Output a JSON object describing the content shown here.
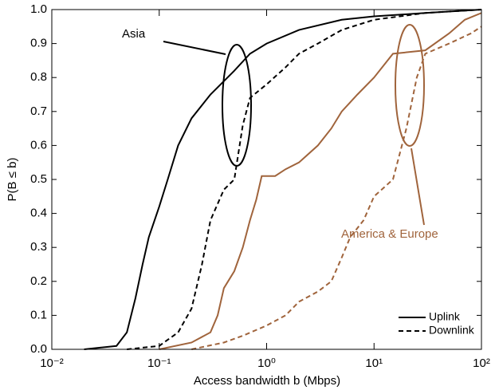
{
  "chart_data": {
    "type": "step-cdf",
    "xlabel": "Access bandwidth b (Mbps)",
    "ylabel": "P(B ≤ b)",
    "xscale": "log",
    "xlim": [
      0.01,
      100
    ],
    "xticks": [
      {
        "value": 0.01,
        "label": "10⁻²"
      },
      {
        "value": 0.1,
        "label": "10⁻¹"
      },
      {
        "value": 1,
        "label": "10⁰"
      },
      {
        "value": 10,
        "label": "10¹"
      },
      {
        "value": 100,
        "label": "10²"
      }
    ],
    "ylim": [
      0,
      1
    ],
    "yticks": [
      {
        "value": 0,
        "label": "0.0"
      },
      0.1,
      0.2,
      0.3,
      0.4,
      0.5,
      0.6,
      0.7,
      0.8,
      0.9,
      {
        "value": 1,
        "label": "1.0"
      }
    ],
    "annotations": [
      "Asia",
      "America & Europe"
    ],
    "legend_position": "lower right",
    "legend": [
      {
        "label": "Uplink",
        "dashed": false
      },
      {
        "label": "Downlink",
        "dashed": true
      }
    ],
    "series": [
      {
        "color": "#000000",
        "dashed": false,
        "x": [
          0.02,
          0.04,
          0.05,
          0.06,
          0.07,
          0.08,
          0.1,
          0.12,
          0.15,
          0.2,
          0.3,
          0.5,
          0.7,
          1,
          2,
          5,
          10,
          30,
          100
        ],
        "values": [
          0,
          0.01,
          0.05,
          0.15,
          0.25,
          0.33,
          0.42,
          0.5,
          0.6,
          0.68,
          0.75,
          0.82,
          0.87,
          0.9,
          0.94,
          0.97,
          0.98,
          0.99,
          1.0
        ]
      },
      {
        "color": "#000000",
        "dashed": true,
        "x": [
          0.05,
          0.1,
          0.15,
          0.2,
          0.25,
          0.3,
          0.4,
          0.5,
          0.6,
          0.7,
          1,
          1.5,
          2,
          3,
          5,
          10,
          30,
          100
        ],
        "values": [
          0,
          0.01,
          0.05,
          0.12,
          0.25,
          0.38,
          0.47,
          0.5,
          0.66,
          0.74,
          0.78,
          0.83,
          0.87,
          0.9,
          0.94,
          0.97,
          0.99,
          1.0
        ]
      },
      {
        "color": "#a0643c",
        "dashed": false,
        "x": [
          0.1,
          0.2,
          0.3,
          0.35,
          0.4,
          0.5,
          0.6,
          0.7,
          0.8,
          0.9,
          1.2,
          1.5,
          2,
          3,
          4,
          5,
          7,
          10,
          15,
          30,
          50,
          70,
          100
        ],
        "values": [
          0,
          0.02,
          0.05,
          0.1,
          0.18,
          0.23,
          0.3,
          0.38,
          0.44,
          0.51,
          0.51,
          0.53,
          0.55,
          0.6,
          0.65,
          0.7,
          0.75,
          0.8,
          0.87,
          0.88,
          0.93,
          0.97,
          0.99
        ]
      },
      {
        "color": "#a0643c",
        "dashed": true,
        "x": [
          0.2,
          0.4,
          0.6,
          1,
          1.5,
          2,
          3,
          4,
          5,
          6,
          8,
          10,
          15,
          20,
          25,
          30,
          50,
          80,
          100
        ],
        "values": [
          0,
          0.02,
          0.04,
          0.07,
          0.1,
          0.14,
          0.17,
          0.2,
          0.27,
          0.33,
          0.38,
          0.45,
          0.5,
          0.65,
          0.8,
          0.87,
          0.9,
          0.93,
          0.95
        ]
      }
    ]
  }
}
